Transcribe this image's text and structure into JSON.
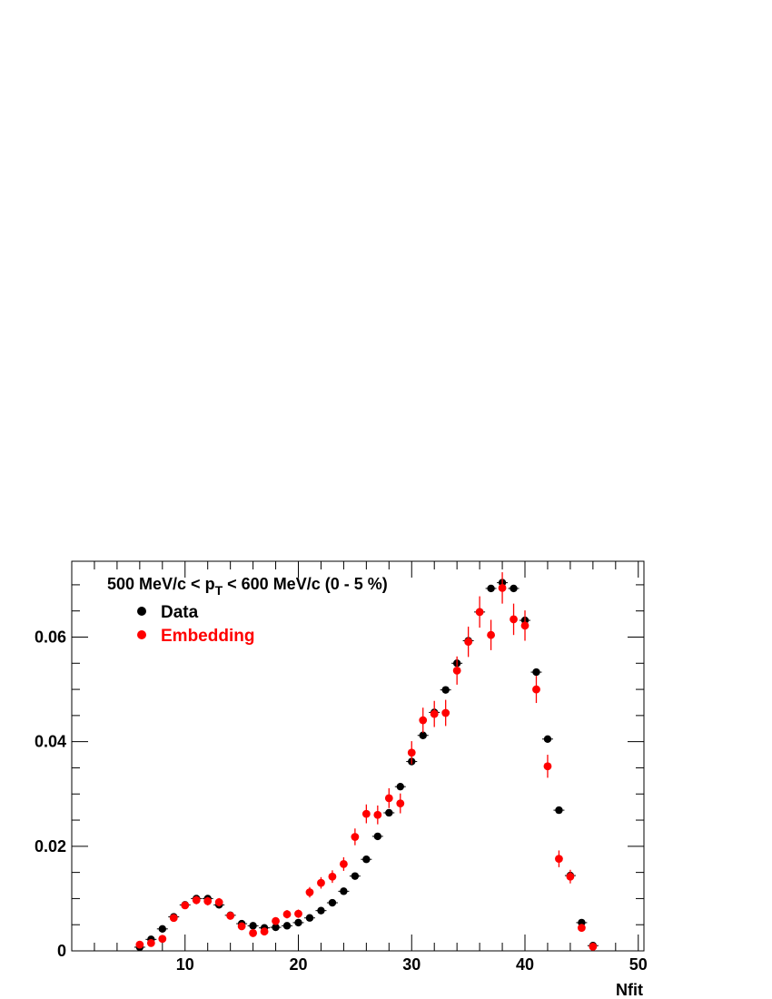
{
  "chart_data": {
    "type": "scatter",
    "title": {
      "pre": "500 MeV/c < p",
      "sub": "T",
      "post": " < 600 MeV/c (0 - 5 %)"
    },
    "xlabel": "Nfit",
    "ylabel": "",
    "xlim": [
      0,
      50.5
    ],
    "ylim": [
      0,
      0.0745
    ],
    "xticks": [
      10,
      20,
      30,
      40,
      50
    ],
    "xtick_labels": [
      "10",
      "20",
      "30",
      "40",
      "50"
    ],
    "yticks": [
      0,
      0.02,
      0.04,
      0.06
    ],
    "ytick_labels": [
      "0",
      "0.02",
      "0.04",
      "0.06"
    ],
    "grid": false,
    "legend_position": "top-left",
    "series": [
      {
        "name": "Data",
        "color": "#000000",
        "x": [
          6,
          7,
          8,
          9,
          10,
          11,
          12,
          13,
          14,
          15,
          16,
          17,
          18,
          19,
          20,
          21,
          22,
          23,
          24,
          25,
          26,
          27,
          28,
          29,
          30,
          31,
          32,
          33,
          34,
          35,
          36,
          37,
          38,
          39,
          40,
          41,
          42,
          43,
          44,
          45,
          46
        ],
        "y": [
          0.0007,
          0.0022,
          0.0042,
          0.0065,
          0.0088,
          0.01,
          0.01,
          0.0088,
          0.0068,
          0.0052,
          0.0048,
          0.0044,
          0.0045,
          0.0048,
          0.0054,
          0.0063,
          0.0077,
          0.0092,
          0.0114,
          0.0143,
          0.0175,
          0.0219,
          0.0264,
          0.0314,
          0.0362,
          0.0412,
          0.0456,
          0.0499,
          0.055,
          0.0593,
          0.0648,
          0.0693,
          0.0704,
          0.0693,
          0.0632,
          0.0533,
          0.0405,
          0.0269,
          0.0144,
          0.0054,
          0.001
        ],
        "err": [
          0.0002,
          0.0002,
          0.0002,
          0.0002,
          0.0002,
          0.0002,
          0.0002,
          0.0002,
          0.0002,
          0.0002,
          0.0002,
          0.0002,
          0.0002,
          0.0002,
          0.0002,
          0.0002,
          0.0002,
          0.0002,
          0.0002,
          0.0002,
          0.0002,
          0.0002,
          0.0002,
          0.0002,
          0.0002,
          0.0002,
          0.0002,
          0.0002,
          0.0002,
          0.0002,
          0.0002,
          0.0002,
          0.0002,
          0.0002,
          0.0002,
          0.0002,
          0.0002,
          0.0002,
          0.0002,
          0.0002,
          0.0002
        ]
      },
      {
        "name": "Embedding",
        "color": "#ff0000",
        "x": [
          6,
          7,
          8,
          9,
          10,
          11,
          12,
          13,
          14,
          15,
          16,
          17,
          18,
          19,
          20,
          21,
          22,
          23,
          24,
          25,
          26,
          27,
          28,
          29,
          30,
          31,
          32,
          33,
          34,
          35,
          36,
          37,
          38,
          39,
          40,
          41,
          42,
          43,
          44,
          45,
          46
        ],
        "y": [
          0.0012,
          0.0015,
          0.0023,
          0.0063,
          0.0087,
          0.0097,
          0.0095,
          0.0093,
          0.0067,
          0.0047,
          0.0034,
          0.0037,
          0.0057,
          0.007,
          0.0071,
          0.0112,
          0.013,
          0.0142,
          0.0166,
          0.0218,
          0.0262,
          0.026,
          0.0292,
          0.0282,
          0.0379,
          0.0441,
          0.0453,
          0.0455,
          0.0536,
          0.0591,
          0.0648,
          0.0604,
          0.0694,
          0.0634,
          0.0622,
          0.05,
          0.0353,
          0.0176,
          0.0142,
          0.0044,
          0.0008
        ],
        "err": [
          0.0003,
          0.0003,
          0.0004,
          0.0006,
          0.0007,
          0.0008,
          0.0008,
          0.0008,
          0.0007,
          0.0006,
          0.0005,
          0.0005,
          0.0007,
          0.0008,
          0.0008,
          0.001,
          0.0011,
          0.0012,
          0.0013,
          0.0016,
          0.0018,
          0.0018,
          0.0019,
          0.0019,
          0.0022,
          0.0024,
          0.0025,
          0.0025,
          0.0027,
          0.0029,
          0.003,
          0.0029,
          0.003,
          0.003,
          0.0029,
          0.0026,
          0.0022,
          0.0016,
          0.0013,
          0.0007,
          0.0003
        ]
      }
    ]
  }
}
